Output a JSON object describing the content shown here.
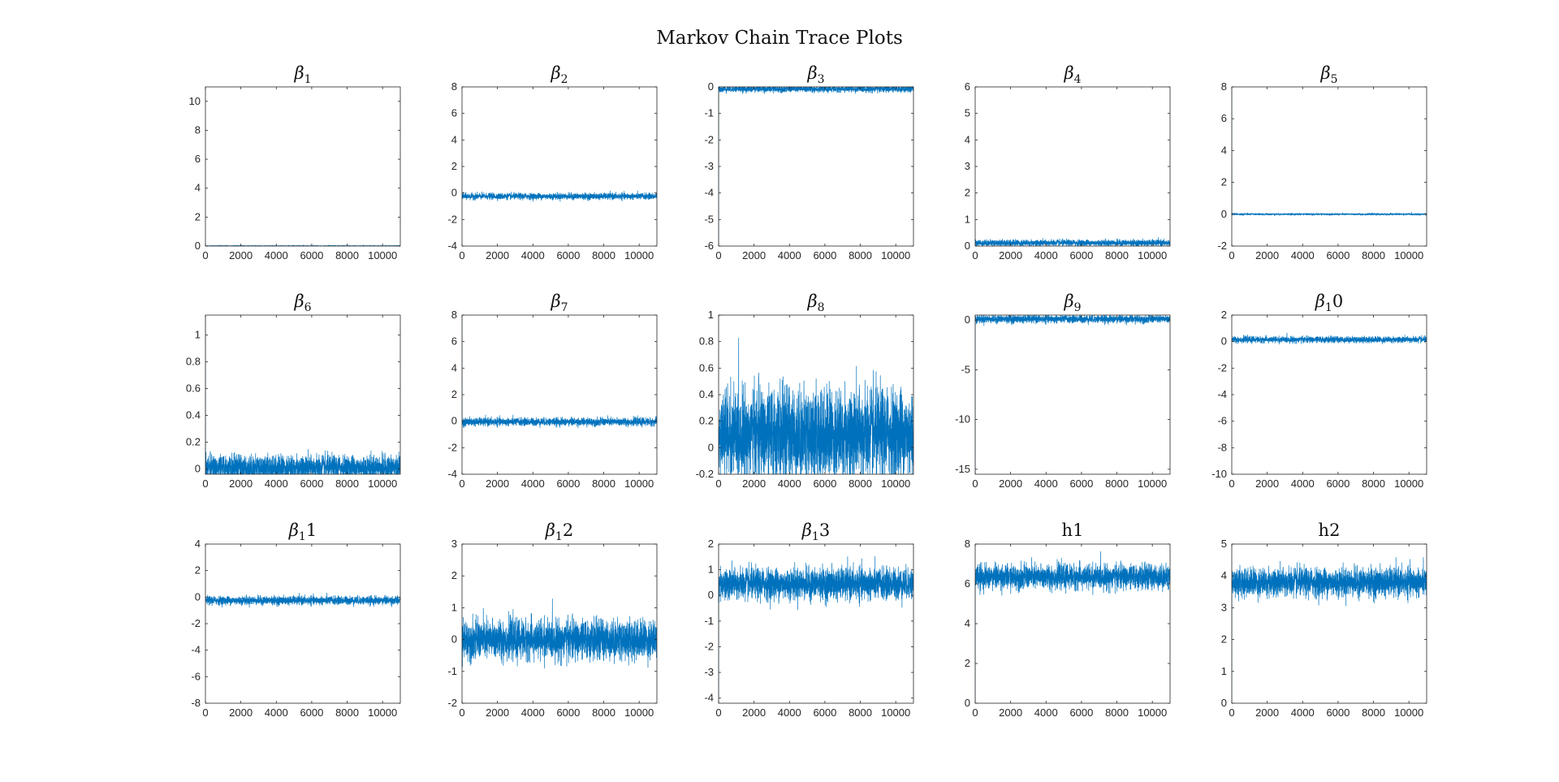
{
  "figure_title": "Markov Chain Trace Plots",
  "colors": {
    "trace": "#0072BD",
    "axis": "#262626",
    "background": "#ffffff"
  },
  "chart_data": [
    {
      "type": "line",
      "title_symbol": "β",
      "title_subscript": "1",
      "title_suffix": "",
      "xlim": [
        0,
        11000
      ],
      "ylim": [
        0,
        11
      ],
      "xticks": [
        0,
        2000,
        4000,
        6000,
        8000,
        10000
      ],
      "yticks": [
        0,
        2,
        4,
        6,
        8,
        10
      ],
      "trace": {
        "mean": 0.0,
        "spread": 0.02,
        "start": 0,
        "samples": 11000
      }
    },
    {
      "type": "line",
      "title_symbol": "β",
      "title_subscript": "2",
      "title_suffix": "",
      "xlim": [
        0,
        11000
      ],
      "ylim": [
        -4,
        8
      ],
      "xticks": [
        0,
        2000,
        4000,
        6000,
        8000,
        10000
      ],
      "yticks": [
        -4,
        -2,
        0,
        2,
        4,
        6,
        8
      ],
      "trace": {
        "mean": -0.25,
        "spread": 0.12,
        "start": 0,
        "samples": 11000
      }
    },
    {
      "type": "line",
      "title_symbol": "β",
      "title_subscript": "3",
      "title_suffix": "",
      "xlim": [
        0,
        11000
      ],
      "ylim": [
        -6,
        0
      ],
      "xticks": [
        0,
        2000,
        4000,
        6000,
        8000,
        10000
      ],
      "yticks": [
        -6,
        -5,
        -4,
        -3,
        -2,
        -1,
        0
      ],
      "trace": {
        "mean": -0.08,
        "spread": 0.06,
        "start": -6,
        "samples": 11000
      }
    },
    {
      "type": "line",
      "title_symbol": "β",
      "title_subscript": "4",
      "title_suffix": "",
      "xlim": [
        0,
        11000
      ],
      "ylim": [
        0,
        6
      ],
      "xticks": [
        0,
        2000,
        4000,
        6000,
        8000,
        10000
      ],
      "yticks": [
        0,
        1,
        2,
        3,
        4,
        5,
        6
      ],
      "trace": {
        "mean": 0.12,
        "spread": 0.06,
        "start": 0,
        "samples": 11000
      }
    },
    {
      "type": "line",
      "title_symbol": "β",
      "title_subscript": "5",
      "title_suffix": "",
      "xlim": [
        0,
        11000
      ],
      "ylim": [
        -2,
        8
      ],
      "xticks": [
        0,
        2000,
        4000,
        6000,
        8000,
        10000
      ],
      "yticks": [
        -2,
        0,
        2,
        4,
        6,
        8
      ],
      "trace": {
        "mean": 0.0,
        "spread": 0.03,
        "start": 8,
        "samples": 11000
      }
    },
    {
      "type": "line",
      "title_symbol": "β",
      "title_subscript": "6",
      "title_suffix": "",
      "xlim": [
        0,
        11000
      ],
      "ylim": [
        -0.04,
        1.15
      ],
      "xticks": [
        0,
        2000,
        4000,
        6000,
        8000,
        10000
      ],
      "yticks": [
        0,
        0.2,
        0.4,
        0.6,
        0.8,
        1
      ],
      "trace": {
        "mean": 0.01,
        "spread": 0.045,
        "start": 1.15,
        "samples": 11000
      }
    },
    {
      "type": "line",
      "title_symbol": "β",
      "title_subscript": "7",
      "title_suffix": "",
      "xlim": [
        0,
        11000
      ],
      "ylim": [
        -4,
        8
      ],
      "xticks": [
        0,
        2000,
        4000,
        6000,
        8000,
        10000
      ],
      "yticks": [
        -4,
        -2,
        0,
        2,
        4,
        6,
        8
      ],
      "trace": {
        "mean": -0.05,
        "spread": 0.15,
        "start": 8,
        "samples": 11000
      }
    },
    {
      "type": "line",
      "title_symbol": "β",
      "title_subscript": "8",
      "title_suffix": "",
      "xlim": [
        0,
        11000
      ],
      "ylim": [
        -0.2,
        1
      ],
      "xticks": [
        0,
        2000,
        4000,
        6000,
        8000,
        10000
      ],
      "yticks": [
        -0.2,
        0,
        0.2,
        0.4,
        0.6,
        0.8,
        1
      ],
      "trace": {
        "mean": 0.1,
        "spread": 0.17,
        "start": 0,
        "samples": 11000
      }
    },
    {
      "type": "line",
      "title_symbol": "β",
      "title_subscript": "9",
      "title_suffix": "",
      "xlim": [
        0,
        11000
      ],
      "ylim": [
        -15.5,
        0.5
      ],
      "xticks": [
        0,
        2000,
        4000,
        6000,
        8000,
        10000
      ],
      "yticks": [
        -15,
        -10,
        -5,
        0
      ],
      "trace": {
        "mean": 0.1,
        "spread": 0.2,
        "start": -15.5,
        "samples": 11000
      }
    },
    {
      "type": "line",
      "title_symbol": "β",
      "title_subscript": "1",
      "title_suffix": "0",
      "xlim": [
        0,
        11000
      ],
      "ylim": [
        -10,
        2
      ],
      "xticks": [
        0,
        2000,
        4000,
        6000,
        8000,
        10000
      ],
      "yticks": [
        -10,
        -8,
        -6,
        -4,
        -2,
        0,
        2
      ],
      "trace": {
        "mean": 0.15,
        "spread": 0.12,
        "start": 0,
        "samples": 11000
      }
    },
    {
      "type": "line",
      "title_symbol": "β",
      "title_subscript": "1",
      "title_suffix": "1",
      "xlim": [
        0,
        11000
      ],
      "ylim": [
        -8,
        4
      ],
      "xticks": [
        0,
        2000,
        4000,
        6000,
        8000,
        10000
      ],
      "yticks": [
        -8,
        -6,
        -4,
        -2,
        0,
        2,
        4
      ],
      "trace": {
        "mean": -0.25,
        "spread": 0.16,
        "start": -0.25,
        "samples": 11000
      }
    },
    {
      "type": "line",
      "title_symbol": "β",
      "title_subscript": "1",
      "title_suffix": "2",
      "xlim": [
        0,
        11000
      ],
      "ylim": [
        -2,
        3
      ],
      "xticks": [
        0,
        2000,
        4000,
        6000,
        8000,
        10000
      ],
      "yticks": [
        -2,
        -1,
        0,
        1,
        2,
        3
      ],
      "trace": {
        "mean": 0.0,
        "spread": 0.3,
        "start": 0,
        "samples": 11000
      }
    },
    {
      "type": "line",
      "title_symbol": "β",
      "title_subscript": "1",
      "title_suffix": "3",
      "xlim": [
        0,
        11000
      ],
      "ylim": [
        -4.2,
        2
      ],
      "xticks": [
        0,
        2000,
        4000,
        6000,
        8000,
        10000
      ],
      "yticks": [
        -4,
        -3,
        -2,
        -1,
        0,
        1,
        2
      ],
      "trace": {
        "mean": 0.45,
        "spread": 0.3,
        "start": -4.2,
        "samples": 11000
      }
    },
    {
      "type": "line",
      "title_symbol": "",
      "title_subscript": "",
      "title_suffix": "h1",
      "xlim": [
        0,
        11000
      ],
      "ylim": [
        0,
        8
      ],
      "xticks": [
        0,
        2000,
        4000,
        6000,
        8000,
        10000
      ],
      "yticks": [
        0,
        2,
        4,
        6,
        8
      ],
      "trace": {
        "mean": 6.35,
        "spread": 0.3,
        "start": 0,
        "samples": 11000
      }
    },
    {
      "type": "line",
      "title_symbol": "",
      "title_subscript": "",
      "title_suffix": "h2",
      "xlim": [
        0,
        11000
      ],
      "ylim": [
        0,
        5
      ],
      "xticks": [
        0,
        2000,
        4000,
        6000,
        8000,
        10000
      ],
      "yticks": [
        0,
        1,
        2,
        3,
        4,
        5
      ],
      "trace": {
        "mean": 3.8,
        "spread": 0.22,
        "start": 0,
        "samples": 11000
      }
    }
  ]
}
